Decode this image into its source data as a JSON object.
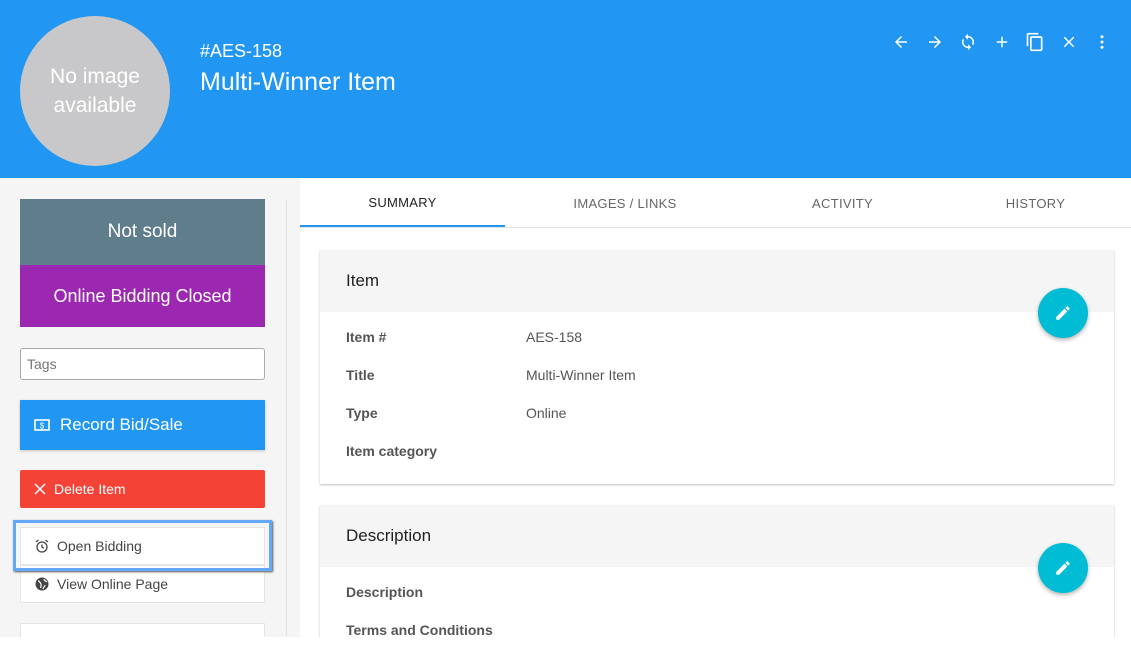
{
  "header": {
    "avatar_text": "No image available",
    "item_id": "#AES-158",
    "title": "Multi-Winner Item",
    "tools": [
      "arrow-left-icon",
      "arrow-right-icon",
      "refresh-icon",
      "add-icon",
      "copy-icon",
      "close-icon",
      "more-vert-icon"
    ]
  },
  "sidebar": {
    "status": "Not sold",
    "bidding_status": "Online Bidding Closed",
    "tags_placeholder": "Tags",
    "record_label": "Record Bid/Sale",
    "delete_label": "Delete Item",
    "open_label": "Open Bidding",
    "view_label": "View Online Page"
  },
  "colors": {
    "header": "#2196F3",
    "not_sold": "#607D8B",
    "bidding_closed": "#9C27B0",
    "delete": "#F44336",
    "fab": "#00BCD4"
  },
  "tabs": [
    {
      "label": "SUMMARY",
      "active": true
    },
    {
      "label": "IMAGES / LINKS"
    },
    {
      "label": "ACTIVITY"
    },
    {
      "label": "HISTORY"
    }
  ],
  "item_card": {
    "title": "Item",
    "rows": [
      {
        "label": "Item #",
        "value": "AES-158"
      },
      {
        "label": "Title",
        "value": "Multi-Winner Item"
      },
      {
        "label": "Type",
        "value": "Online"
      },
      {
        "label": "Item category",
        "value": ""
      }
    ]
  },
  "desc_card": {
    "title": "Description",
    "rows": [
      {
        "label": "Description",
        "value": ""
      },
      {
        "label": "Terms and Conditions",
        "value": ""
      }
    ]
  }
}
